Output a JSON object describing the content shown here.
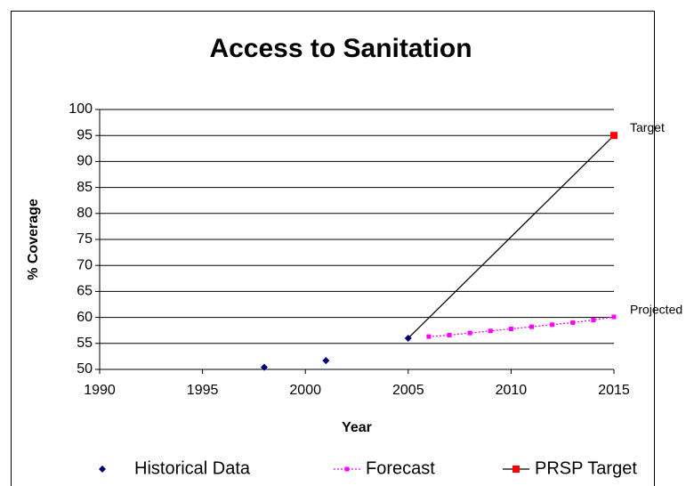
{
  "chart_data": {
    "type": "line",
    "title": "Access to Sanitation",
    "x_label": "Year",
    "y_label": "% Coverage",
    "xlim": [
      1990,
      2015
    ],
    "xticks": [
      1990,
      1995,
      2000,
      2005,
      2010,
      2015
    ],
    "ylim": [
      50,
      100
    ],
    "yticks": [
      50,
      55,
      60,
      65,
      70,
      75,
      80,
      85,
      90,
      95,
      100
    ],
    "grid": true,
    "legend": "bottom",
    "series": [
      {
        "name": "Historical Data",
        "color": "#000080",
        "marker": "diamond",
        "line": false,
        "x": [
          1998,
          2001,
          2005
        ],
        "values": [
          50.4,
          51.7,
          56
        ]
      },
      {
        "name": "Forecast",
        "color": "#ff00ff",
        "marker": "square",
        "line": "dotted",
        "x": [
          2006,
          2007,
          2008,
          2009,
          2010,
          2011,
          2012,
          2013,
          2014,
          2015
        ],
        "values": [
          56.3,
          56.6,
          57.0,
          57.4,
          57.8,
          58.2,
          58.6,
          59.0,
          59.5,
          60.1
        ]
      },
      {
        "name": "PRSP Target",
        "color": "#ff0000",
        "line_color": "#000000",
        "marker": "square",
        "line": "solid",
        "x": [
          2005,
          2015
        ],
        "values": [
          56,
          95
        ]
      }
    ],
    "annotations": [
      {
        "text": "Target",
        "x": 2015,
        "y": 95
      },
      {
        "text": "Projected",
        "x": 2015,
        "y": 60
      }
    ]
  }
}
